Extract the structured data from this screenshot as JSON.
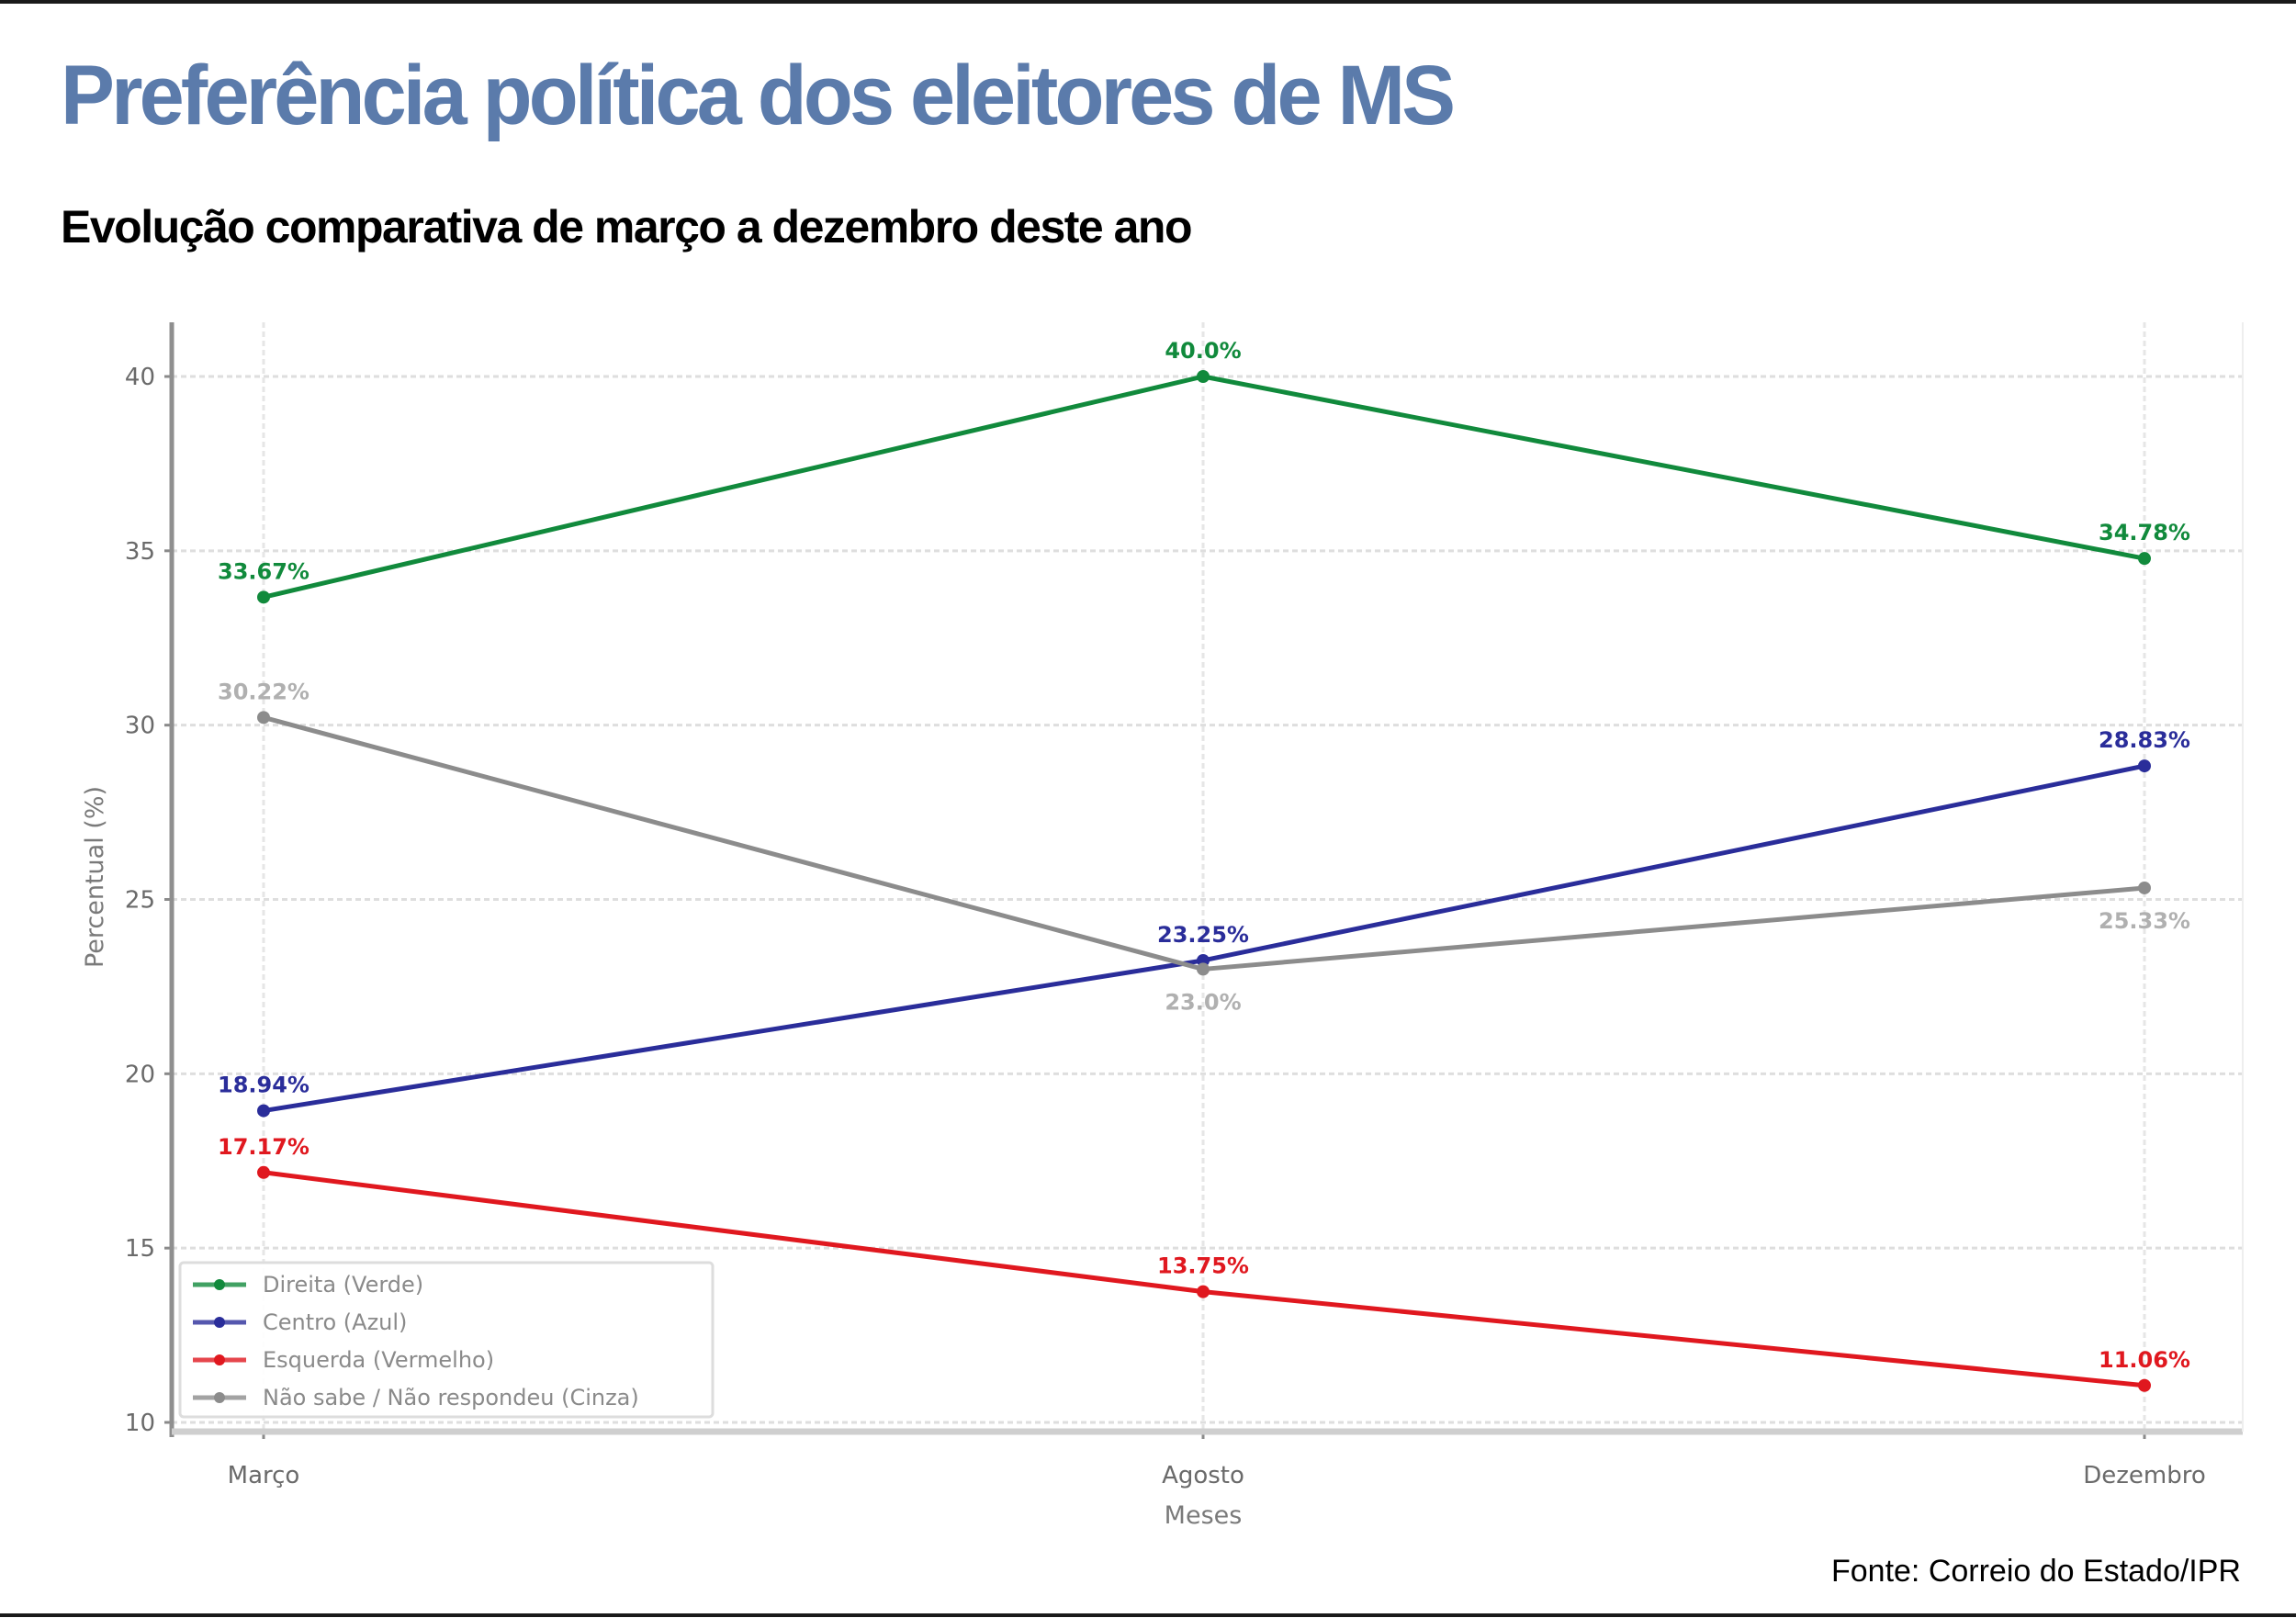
{
  "header": {
    "title": "Preferência política dos eleitores de MS",
    "subtitle": "Evolução comparativa de março a dezembro deste ano",
    "title_color": "#5b7bab"
  },
  "footer": {
    "source": "Fonte: Correio do Estado/IPR"
  },
  "chart_data": {
    "type": "line",
    "title": "",
    "xlabel": "Meses",
    "ylabel": "Percentual (%)",
    "categories": [
      "Março",
      "Agosto",
      "Dezembro"
    ],
    "ylim": [
      10,
      41.5
    ],
    "yticks": [
      10,
      15,
      20,
      25,
      30,
      35,
      40
    ],
    "grid": true,
    "legend_position": "bottom-left",
    "series": [
      {
        "name": "Direita (Verde)",
        "color": "#118a3c",
        "values": [
          33.67,
          40.0,
          34.78
        ],
        "labels": [
          "33.67%",
          "40.0%",
          "34.78%"
        ],
        "label_side": "above"
      },
      {
        "name": "Centro (Azul)",
        "color": "#2a2d9a",
        "values": [
          18.94,
          23.25,
          28.83
        ],
        "labels": [
          "18.94%",
          "23.25%",
          "28.83%"
        ],
        "label_side": "above"
      },
      {
        "name": "Esquerda (Vermelho)",
        "color": "#e0181f",
        "values": [
          17.17,
          13.75,
          11.06
        ],
        "labels": [
          "17.17%",
          "13.75%",
          "11.06%"
        ],
        "label_side": "above"
      },
      {
        "name": "Não sabe / Não respondeu (Cinza)",
        "color": "#8c8c8c",
        "label_color": "#b0b0b0",
        "values": [
          30.22,
          23.0,
          25.33
        ],
        "labels": [
          "30.22%",
          "23.0%",
          "25.33%"
        ],
        "label_side": "mixed"
      }
    ]
  }
}
